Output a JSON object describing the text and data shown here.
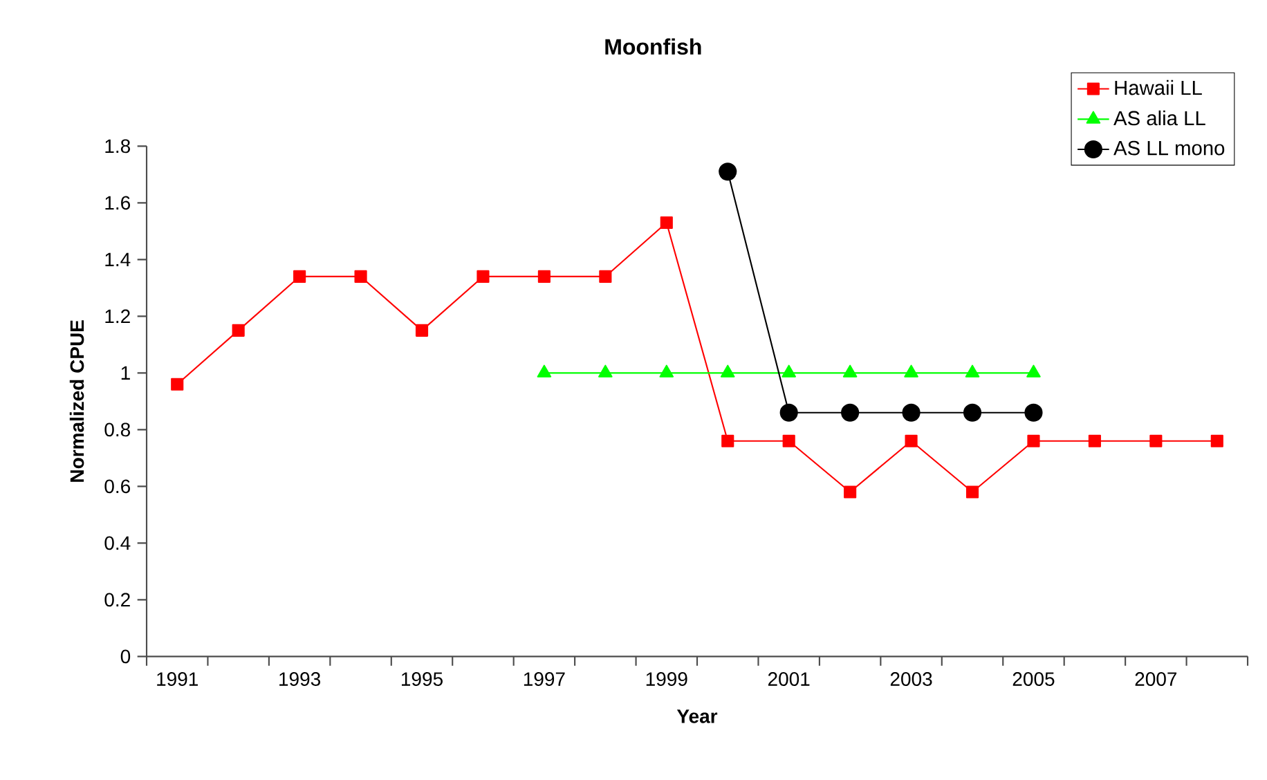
{
  "chart_data": {
    "type": "line",
    "title": "Moonfish",
    "xlabel": "Year",
    "ylabel": "Normalized CPUE",
    "categories": [
      "1991",
      null,
      "1993",
      null,
      "1995",
      null,
      "1997",
      null,
      "1999",
      null,
      "2001",
      null,
      "2003",
      null,
      "2005",
      null,
      "2007",
      null
    ],
    "series": [
      {
        "name": "Hawaii LL",
        "color": "#ff0000",
        "marker": "square",
        "values": [
          0.96,
          1.15,
          1.34,
          1.34,
          1.15,
          1.34,
          1.34,
          1.34,
          1.53,
          0.76,
          0.76,
          0.58,
          0.76,
          0.58,
          0.76,
          0.76,
          0.76,
          0.76
        ]
      },
      {
        "name": "AS alia LL",
        "color": "#00ff00",
        "marker": "triangle",
        "values": [
          null,
          null,
          null,
          null,
          null,
          null,
          1.0,
          1.0,
          1.0,
          1.0,
          1.0,
          1.0,
          1.0,
          1.0,
          1.0,
          null,
          null,
          null
        ]
      },
      {
        "name": "AS LL mono",
        "color": "#000000",
        "marker": "circle",
        "values": [
          null,
          null,
          null,
          null,
          null,
          null,
          null,
          null,
          null,
          1.71,
          0.86,
          0.86,
          0.86,
          0.86,
          0.86,
          null,
          null,
          null
        ]
      }
    ],
    "ylim": [
      0,
      1.8
    ],
    "yticks": [
      0,
      0.2,
      0.4,
      0.6,
      0.8,
      1,
      1.2,
      1.4,
      1.6,
      1.8
    ],
    "grid": false,
    "legend": "top right"
  }
}
